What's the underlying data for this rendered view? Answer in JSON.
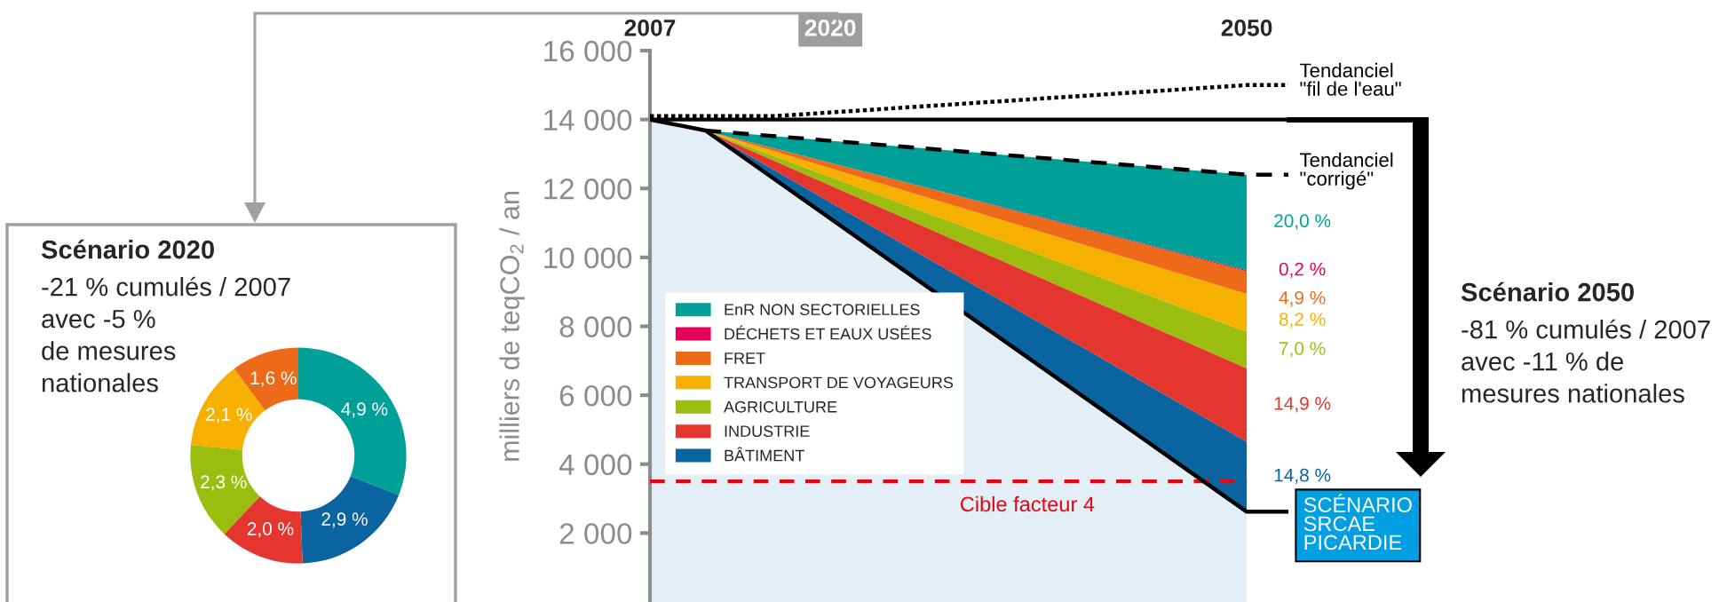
{
  "chart_data": [
    {
      "type": "donut",
      "title": "Scénario 2020",
      "subtitle": "-21 % cumulés / 2007\navec -5 %\nde mesures\nnationales",
      "categories": [
        null,
        null,
        null,
        null,
        null,
        null
      ],
      "values": [
        4.9,
        2.9,
        2.0,
        2.3,
        2.1,
        1.6
      ],
      "colors": [
        "#00a098",
        "#0a64a0",
        "#e4352e",
        "#9abd0f",
        "#f6b000",
        "#ec6a18"
      ],
      "value_labels": [
        "4,9 %",
        "2,9 %",
        "2,0 %",
        "2,3 %",
        "2,1 %",
        "1,6 %"
      ]
    },
    {
      "type": "area",
      "stacked": true,
      "ylabel": "milliers de teqCO$_{2}$ / an",
      "x": [
        2007,
        2011,
        2050
      ],
      "series": [
        {
          "color": "#e3eef7",
          "values": [
            14000,
            13680,
            2620
          ]
        },
        {
          "name": "BÂTIMENT",
          "color": "#0a64a0",
          "values": [
            0,
            0,
            2030
          ]
        },
        {
          "name": "INDUSTRIE",
          "color": "#e4352e",
          "values": [
            0,
            0,
            2130
          ]
        },
        {
          "name": "AGRICULTURE",
          "color": "#9abd0f",
          "values": [
            0,
            0,
            1060
          ]
        },
        {
          "name": "TRANSPORT DE VOYAGEURS",
          "color": "#f6b000",
          "values": [
            0,
            0,
            1100
          ]
        },
        {
          "name": "FRET",
          "color": "#ec6a18",
          "values": [
            0,
            0,
            660
          ]
        },
        {
          "name": "DÉCHETS ET EAUX USÉES",
          "color": "#e5005a",
          "values": [
            0,
            0,
            30
          ]
        },
        {
          "name": "EnR NON SECTORIELLES",
          "color": "#00a098",
          "values": [
            0,
            0,
            2770
          ]
        },
        {
          "type": "line",
          "name": "Tendanciel\n\"fil de l'eau\"",
          "color": "#000000",
          "line_style": "dotted",
          "x": [
            2007,
            2016,
            2050,
            2053
          ],
          "values": [
            14100,
            14100,
            15000,
            15000
          ]
        },
        {
          "type": "line",
          "name": "Tendanciel\n\"corrigé\"",
          "color": "#000000",
          "line_style": "dashed",
          "x": [
            2011,
            2050,
            2053
          ],
          "values": [
            13680,
            12400,
            12400
          ]
        },
        {
          "type": "line",
          "name": "SCÉNARIO\nSRCAE\nPICARDIE",
          "color": "#000000",
          "line_style": "solid",
          "x": [
            2007,
            2011,
            2050,
            2053
          ],
          "values": [
            14000,
            13680,
            2620,
            2620
          ]
        }
      ],
      "xlim": [
        2007,
        2053
      ],
      "xticks": [
        2007,
        2020,
        2050
      ],
      "ylim": [
        0,
        16000
      ],
      "yticks": [
        {
          "value": 2000,
          "label": "2 000"
        },
        {
          "value": 4000,
          "label": "4 000"
        },
        {
          "value": 6000,
          "label": "6 000"
        },
        {
          "value": 8000,
          "label": "8 000"
        },
        {
          "value": 10000,
          "label": "10 000"
        },
        {
          "value": 12000,
          "label": "12 000"
        },
        {
          "value": 14000,
          "label": "14 000"
        },
        {
          "value": 16000,
          "label": "16 000"
        }
      ],
      "legend": "left",
      "ref_lines": [
        {
          "axis": "y",
          "value": 14000,
          "label": null,
          "color": "#000000",
          "line_style": "solid"
        },
        {
          "axis": "y",
          "value": 3500,
          "label": "Cible facteur 4",
          "color": "#e30613",
          "line_style": "dashed"
        }
      ],
      "annotations": [
        "Scénario 2050",
        "-81 % cumulés / 2007\navec -11 % de\nmesures nationales",
        "20,0 %",
        "0,2 %",
        "4,9 %",
        "8,2 %",
        "7,0 %",
        "14,9 %",
        "14,8 %"
      ]
    }
  ]
}
